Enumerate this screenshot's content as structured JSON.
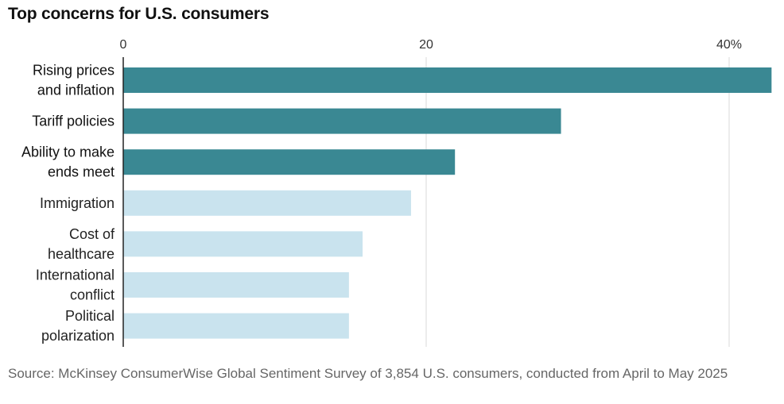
{
  "source": "Source: McKinsey ConsumerWise Global Sentiment Survey of 3,854 U.S. consumers, conducted from April to May 2025",
  "chart_data": {
    "type": "bar",
    "orientation": "horizontal",
    "title": "Top concerns for U.S. consumers",
    "categories": [
      [
        "Rising prices",
        "and inflation"
      ],
      [
        "Tariff policies"
      ],
      [
        "Ability to make",
        "ends meet"
      ],
      [
        "Immigration"
      ],
      [
        "Cost of",
        "healthcare"
      ],
      [
        "International",
        "conflict"
      ],
      [
        "Political",
        "polarization"
      ]
    ],
    "values": [
      42.8,
      28.9,
      21.9,
      19.0,
      15.8,
      14.9,
      14.9
    ],
    "highlighted": [
      true,
      true,
      true,
      false,
      false,
      false,
      false
    ],
    "xlim": [
      0,
      43
    ],
    "ticks": [
      0,
      20,
      40
    ],
    "tick_labels": [
      "0",
      "20",
      "40%"
    ],
    "colors": {
      "highlight": "#3a8893",
      "muted": "#c9e3ee",
      "grid": "#d8d8d8",
      "axis": "#222222"
    },
    "xlabel": "",
    "ylabel": ""
  }
}
